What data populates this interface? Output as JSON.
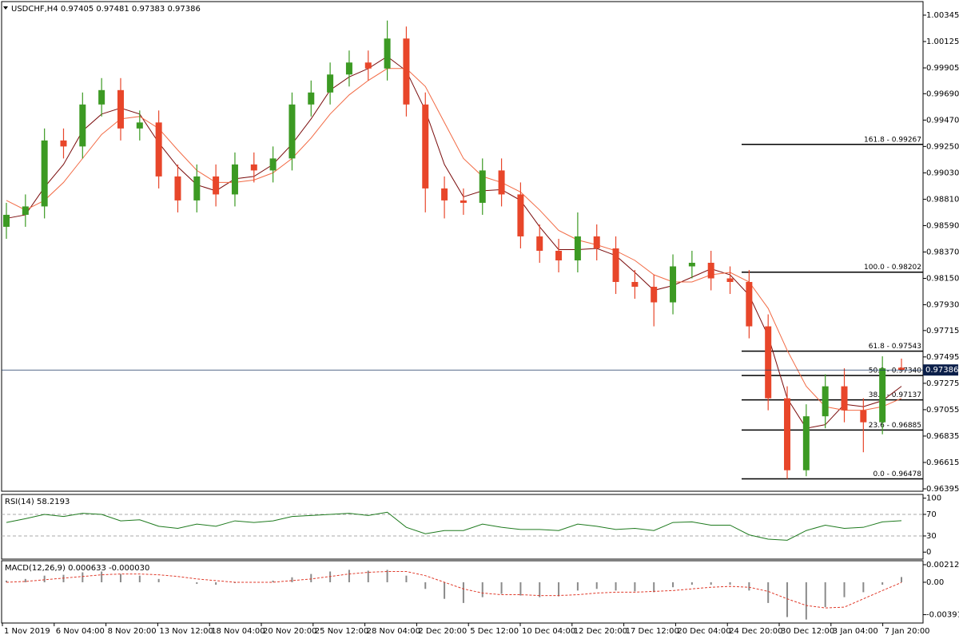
{
  "chart_data": [
    {
      "type": "candlestick",
      "title": "USDCHF,H4  0.97405 0.97481 0.97383 0.97386",
      "open": [
        0.9858,
        0.9868,
        0.9875,
        0.993,
        0.9925,
        0.996,
        0.9972,
        0.994,
        0.9945,
        0.99,
        0.988,
        0.99,
        0.9885,
        0.991,
        0.9905,
        0.9915,
        0.996,
        0.997,
        0.9985,
        0.9995,
        0.999,
        1.0015,
        0.996,
        0.989,
        0.988,
        0.9878,
        0.9905,
        0.9885,
        0.985,
        0.9838,
        0.983,
        0.985,
        0.984,
        0.9812,
        0.9808,
        0.9795,
        0.9825,
        0.9828,
        0.9815,
        0.9812,
        0.9775,
        0.9715,
        0.9655,
        0.97,
        0.9725,
        0.9705,
        0.9695,
        0.97405
      ],
      "high": [
        0.9878,
        0.9885,
        0.994,
        0.994,
        0.997,
        0.9982,
        0.9982,
        0.9955,
        0.9955,
        0.991,
        0.991,
        0.991,
        0.992,
        0.992,
        0.9925,
        0.997,
        0.998,
        0.9995,
        1.0005,
        1.0005,
        1.003,
        1.0025,
        0.997,
        0.99,
        0.989,
        0.9915,
        0.9915,
        0.9895,
        0.986,
        0.9848,
        0.987,
        0.986,
        0.985,
        0.9822,
        0.9818,
        0.9835,
        0.9838,
        0.9838,
        0.9825,
        0.9822,
        0.9785,
        0.9725,
        0.971,
        0.9735,
        0.974,
        0.9715,
        0.975,
        0.97481
      ],
      "low": [
        0.9848,
        0.9858,
        0.9865,
        0.9915,
        0.9915,
        0.995,
        0.993,
        0.993,
        0.989,
        0.987,
        0.987,
        0.9875,
        0.9875,
        0.9895,
        0.9895,
        0.9905,
        0.995,
        0.996,
        0.9975,
        0.998,
        0.998,
        0.995,
        0.987,
        0.9865,
        0.9868,
        0.9868,
        0.9875,
        0.984,
        0.9828,
        0.982,
        0.982,
        0.983,
        0.9802,
        0.9798,
        0.9775,
        0.9785,
        0.9815,
        0.9805,
        0.9802,
        0.9765,
        0.9705,
        0.96478,
        0.965,
        0.969,
        0.9695,
        0.967,
        0.9685,
        0.97383
      ],
      "close": [
        0.9868,
        0.9875,
        0.993,
        0.9925,
        0.996,
        0.9972,
        0.994,
        0.9945,
        0.99,
        0.988,
        0.99,
        0.9885,
        0.991,
        0.9905,
        0.9915,
        0.996,
        0.997,
        0.9985,
        0.9995,
        0.999,
        1.0015,
        0.996,
        0.989,
        0.988,
        0.9878,
        0.9905,
        0.9885,
        0.985,
        0.9838,
        0.983,
        0.985,
        0.984,
        0.9812,
        0.9808,
        0.9795,
        0.9825,
        0.9828,
        0.9815,
        0.9812,
        0.9775,
        0.9715,
        0.9655,
        0.97,
        0.9725,
        0.9705,
        0.9695,
        0.974,
        0.97386
      ],
      "up_color": "#3c9a23",
      "down_color": "#e8462a",
      "moving_averages": [
        {
          "color": "#7a0c0c",
          "values": [
            0.9865,
            0.9868,
            0.9891,
            0.991,
            0.9938,
            0.9952,
            0.9957,
            0.9952,
            0.9928,
            0.9908,
            0.9893,
            0.9888,
            0.9898,
            0.99,
            0.991,
            0.9927,
            0.9948,
            0.9972,
            0.9983,
            0.999,
            1.0,
            0.9988,
            0.9955,
            0.991,
            0.9883,
            0.9888,
            0.9889,
            0.988,
            0.9858,
            0.9839,
            0.9839,
            0.984,
            0.9834,
            0.982,
            0.9805,
            0.9809,
            0.9816,
            0.9823,
            0.9818,
            0.9801,
            0.9767,
            0.9715,
            0.969,
            0.9693,
            0.971,
            0.9708,
            0.9713,
            0.9725
          ]
        },
        {
          "color": "#f26a44",
          "values": [
            0.988,
            0.9872,
            0.988,
            0.9895,
            0.9915,
            0.9935,
            0.9948,
            0.995,
            0.994,
            0.9922,
            0.9905,
            0.9895,
            0.9895,
            0.9897,
            0.9903,
            0.9915,
            0.9932,
            0.9952,
            0.9968,
            0.998,
            0.999,
            0.999,
            0.9975,
            0.9945,
            0.9915,
            0.99,
            0.9895,
            0.9887,
            0.9872,
            0.9855,
            0.9847,
            0.9843,
            0.9838,
            0.983,
            0.9818,
            0.9812,
            0.9812,
            0.9818,
            0.982,
            0.9812,
            0.979,
            0.9755,
            0.9725,
            0.9708,
            0.9705,
            0.9705,
            0.9708,
            0.9715
          ]
        }
      ],
      "fib_levels": [
        {
          "label": "161.8 - 0.99267",
          "value": 0.99267
        },
        {
          "label": "100.0 - 0.98202",
          "value": 0.98202
        },
        {
          "label": "61.8 - 0.97543",
          "value": 0.97543
        },
        {
          "label": "50.0 - 0.97340",
          "value": 0.9734
        },
        {
          "label": "38.2 - 0.97137",
          "value": 0.97137
        },
        {
          "label": "23.6 - 0.96885",
          "value": 0.96885
        },
        {
          "label": "0.0 - 0.96478",
          "value": 0.96478
        }
      ],
      "ylim": [
        0.96375,
        1.00458
      ],
      "yticks": [
        1.00345,
        1.00125,
        0.99905,
        {
          "value": 0.9969,
          "label": "0.99690"
        },
        {
          "value": 0.9947,
          "label": "0.99470"
        },
        {
          "value": 0.9925,
          "label": "0.99250"
        },
        {
          "value": 0.9903,
          "label": "0.99030"
        },
        {
          "value": 0.9881,
          "label": "0.98810"
        },
        {
          "value": 0.9859,
          "label": "0.98590"
        },
        {
          "value": 0.9837,
          "label": "0.98370"
        },
        {
          "value": 0.9815,
          "label": "0.98150"
        },
        {
          "value": 0.9793,
          "label": "0.97930"
        },
        0.97715,
        0.97495,
        0.97275,
        0.97055,
        0.96835,
        0.96615,
        0.96395
      ],
      "xlabels": [
        "1 Nov 2019",
        "6 Nov 04:00",
        "8 Nov 20:00",
        "13 Nov 12:00",
        "18 Nov 04:00",
        "20 Nov 20:00",
        "25 Nov 12:00",
        "28 Nov 04:00",
        "2 Dec 20:00",
        "5 Dec 12:00",
        "10 Dec 04:00",
        "12 Dec 20:00",
        "17 Dec 12:00",
        "20 Dec 04:00",
        "24 Dec 20:00",
        "30 Dec 12:00",
        "3 Jan 04:00",
        "7 Jan 20:00"
      ]
    },
    {
      "type": "line",
      "title": "RSI(14) 58.2193",
      "color": "#1e7a1e",
      "values": [
        55,
        62,
        70,
        66,
        72,
        70,
        58,
        60,
        48,
        44,
        52,
        48,
        58,
        55,
        58,
        66,
        68,
        70,
        72,
        68,
        74,
        46,
        34,
        40,
        40,
        52,
        46,
        42,
        42,
        40,
        52,
        48,
        42,
        44,
        40,
        55,
        56,
        50,
        50,
        32,
        24,
        22,
        40,
        50,
        44,
        46,
        56,
        58.2193
      ],
      "ylim": [
        -13,
        107
      ],
      "yticks": [
        100,
        70,
        30,
        0
      ]
    },
    {
      "type": "bar",
      "title": "MACD(12,26,9) 0.000633 -0.000030",
      "color": "#8a8a8a",
      "signal_color": "#e03a2a",
      "values": [
        0.0002,
        0.0004,
        0.0008,
        0.0009,
        0.0012,
        0.0013,
        0.001,
        0.0008,
        0.0004,
        0.0,
        -0.0002,
        -0.0003,
        -0.0001,
        0.0,
        0.0002,
        0.0006,
        0.001,
        0.0013,
        0.0015,
        0.0014,
        0.0015,
        0.0008,
        -0.0008,
        -0.002,
        -0.0025,
        -0.0018,
        -0.0014,
        -0.0016,
        -0.0018,
        -0.0017,
        -0.001,
        -0.0008,
        -0.001,
        -0.0011,
        -0.0012,
        -0.0006,
        -0.0003,
        -0.0003,
        -0.0003,
        -0.001,
        -0.0025,
        -0.0042,
        -0.0045,
        -0.003,
        -0.0018,
        -0.0012,
        -0.0003,
        0.000633
      ],
      "signal": [
        0.0,
        0.0001,
        0.0003,
        0.0005,
        0.0007,
        0.0009,
        0.001,
        0.001,
        0.0009,
        0.0007,
        0.0004,
        0.0002,
        0.0,
        0.0,
        0.0,
        0.0002,
        0.0004,
        0.0007,
        0.001,
        0.0012,
        0.0013,
        0.0013,
        0.0008,
        0.0,
        -0.0008,
        -0.0013,
        -0.0015,
        -0.0015,
        -0.0016,
        -0.0016,
        -0.0015,
        -0.0013,
        -0.0012,
        -0.0012,
        -0.0011,
        -0.001,
        -0.0008,
        -0.0006,
        -0.0005,
        -0.0006,
        -0.0011,
        -0.002,
        -0.0028,
        -0.0031,
        -0.003,
        -0.002,
        -0.001,
        -3e-05
      ],
      "ylim": [
        -0.00492,
        0.0026
      ],
      "yticks": [
        0.002121,
        {
          "value": 0,
          "label": "0.00"
        },
        -0.003912
      ]
    }
  ]
}
